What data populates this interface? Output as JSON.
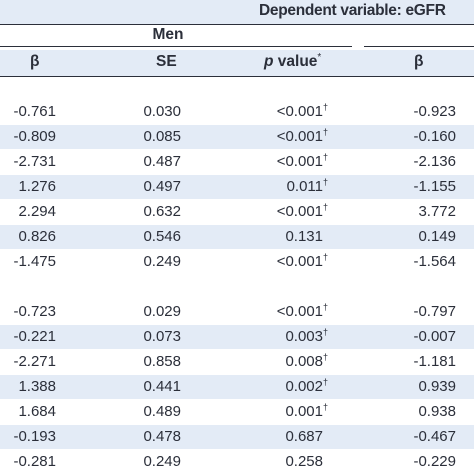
{
  "header": {
    "dependent_variable": "Dependent variable: eGFR",
    "group": "Men",
    "columns": {
      "beta": "β",
      "se": "SE",
      "p_value_italic": "p",
      "p_value_rest": " value",
      "p_value_marker": "*",
      "beta2": "β"
    }
  },
  "blocks": [
    {
      "rows": [
        {
          "beta": "-0.761",
          "se": "0.030",
          "p": "<0.001",
          "dagger": "†",
          "beta2": "-0.923"
        },
        {
          "beta": "-0.809",
          "se": "0.085",
          "p": "<0.001",
          "dagger": "†",
          "beta2": "-0.160"
        },
        {
          "beta": "-2.731",
          "se": "0.487",
          "p": "<0.001",
          "dagger": "†",
          "beta2": "-2.136"
        },
        {
          "beta": "1.276",
          "se": "0.497",
          "p": "0.011",
          "dagger": "†",
          "beta2": "-1.155"
        },
        {
          "beta": "2.294",
          "se": "0.632",
          "p": "<0.001",
          "dagger": "†",
          "beta2": "3.772"
        },
        {
          "beta": "0.826",
          "se": "0.546",
          "p": "0.131",
          "dagger": "",
          "beta2": "0.149"
        },
        {
          "beta": "-1.475",
          "se": "0.249",
          "p": "<0.001",
          "dagger": "†",
          "beta2": "-1.564"
        }
      ]
    },
    {
      "rows": [
        {
          "beta": "-0.723",
          "se": "0.029",
          "p": "<0.001",
          "dagger": "†",
          "beta2": "-0.797"
        },
        {
          "beta": "-0.221",
          "se": "0.073",
          "p": "0.003",
          "dagger": "†",
          "beta2": "-0.007"
        },
        {
          "beta": "-2.271",
          "se": "0.858",
          "p": "0.008",
          "dagger": "†",
          "beta2": "-1.181"
        },
        {
          "beta": "1.388",
          "se": "0.441",
          "p": "0.002",
          "dagger": "†",
          "beta2": "0.939"
        },
        {
          "beta": "1.684",
          "se": "0.489",
          "p": "0.001",
          "dagger": "†",
          "beta2": "0.938"
        },
        {
          "beta": "-0.193",
          "se": "0.478",
          "p": "0.687",
          "dagger": "",
          "beta2": "-0.467"
        },
        {
          "beta": "-0.281",
          "se": "0.249",
          "p": "0.258",
          "dagger": "",
          "beta2": "-0.229"
        }
      ]
    }
  ]
}
